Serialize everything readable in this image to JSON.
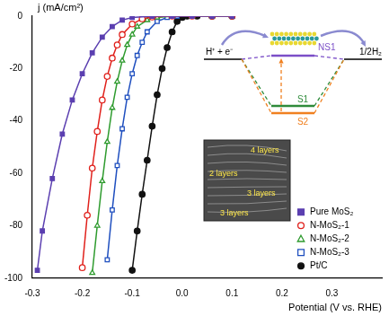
{
  "chart_data": {
    "type": "line",
    "x_label": "Potential (V vs. RHE)",
    "y_label": "j (mA/cm²)",
    "xlim": [
      -0.3,
      0.4
    ],
    "xticks": [
      -0.3,
      -0.2,
      -0.1,
      {
        "value": 0,
        "label": "0.0"
      },
      0.1,
      0.2,
      0.3
    ],
    "ylim": [
      -100,
      0
    ],
    "yticks": [
      0,
      -20,
      -40,
      -60,
      -80,
      -100
    ],
    "grid": false,
    "legend": "lower right",
    "series": [
      {
        "name": "Pure MoS₂",
        "color": "#5b3fb0",
        "marker": "filled_square",
        "x": [
          0.1,
          0.06,
          0.02,
          -0.02,
          -0.06,
          -0.1,
          -0.12,
          -0.14,
          -0.16,
          -0.18,
          -0.2,
          -0.22,
          -0.24,
          -0.26,
          -0.28,
          -0.29
        ],
        "values": [
          0,
          0,
          0,
          0,
          0,
          -0.5,
          -1.5,
          -4,
          -8,
          -14,
          -22,
          -32,
          -45,
          -62,
          -82,
          -97
        ]
      },
      {
        "name": "N-MoS₂-1",
        "color": "#e0201b",
        "marker": "open_circle",
        "x": [
          0.1,
          0.06,
          0.02,
          -0.02,
          -0.06,
          -0.08,
          -0.1,
          -0.12,
          -0.13,
          -0.14,
          -0.15,
          -0.16,
          -0.17,
          -0.18,
          -0.19,
          -0.2
        ],
        "values": [
          0,
          0,
          0,
          0,
          -0.3,
          -1,
          -3,
          -7,
          -11,
          -16,
          -23,
          -32,
          -44,
          -58,
          -76,
          -96
        ]
      },
      {
        "name": "N-MoS₂-2",
        "color": "#2e9b2e",
        "marker": "open_triangle",
        "x": [
          0.1,
          0.06,
          0.02,
          -0.02,
          -0.05,
          -0.07,
          -0.09,
          -0.1,
          -0.11,
          -0.12,
          -0.13,
          -0.14,
          -0.15,
          -0.16,
          -0.17,
          -0.18
        ],
        "values": [
          0,
          0,
          0,
          0,
          -0.5,
          -1.5,
          -4,
          -7,
          -11,
          -17,
          -25,
          -35,
          -48,
          -63,
          -80,
          -98
        ]
      },
      {
        "name": "N-MoS₂-3",
        "color": "#1f4fbf",
        "marker": "open_square",
        "x": [
          0.1,
          0.06,
          0.02,
          -0.01,
          -0.03,
          -0.05,
          -0.07,
          -0.08,
          -0.09,
          -0.1,
          -0.11,
          -0.12,
          -0.13,
          -0.14,
          -0.15
        ],
        "values": [
          0,
          0,
          0,
          0,
          -0.5,
          -2,
          -6,
          -10,
          -15,
          -22,
          -31,
          -43,
          -57,
          -74,
          -93
        ]
      },
      {
        "name": "Pt/C",
        "color": "#111111",
        "marker": "filled_circle",
        "x": [
          0.1,
          0.06,
          0.03,
          0.01,
          0,
          -0.01,
          -0.02,
          -0.03,
          -0.04,
          -0.05,
          -0.06,
          -0.07,
          -0.08,
          -0.09,
          -0.1
        ],
        "values": [
          0,
          0,
          0,
          0,
          -0.5,
          -2,
          -6,
          -12,
          -20,
          -30,
          -42,
          -55,
          -68,
          -82,
          -97
        ]
      }
    ]
  },
  "energy_diagram": {
    "reactant": "H⁺ + e⁻",
    "product": "1/2H₂",
    "levels": [
      {
        "label": "NS1",
        "color": "#7b4fc8"
      },
      {
        "label": "S1",
        "color": "#2e8b3a"
      },
      {
        "label": "S2",
        "color": "#f08020"
      }
    ]
  },
  "tem_inset": {
    "labels": [
      "4 layers",
      "2 layers",
      "3 layers",
      "3 layers"
    ]
  }
}
